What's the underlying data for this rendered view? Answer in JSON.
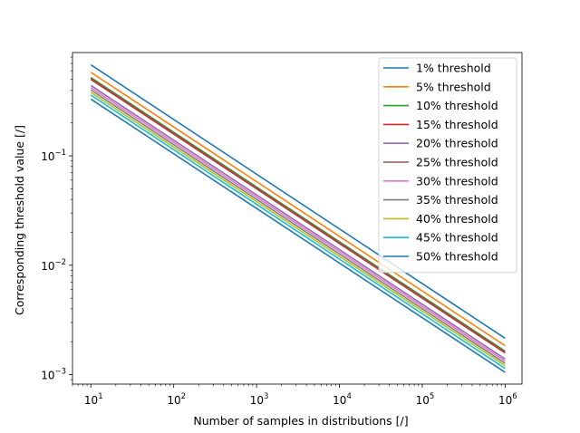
{
  "chart_data": {
    "type": "line",
    "xlabel": "Number of samples in distributions [/]",
    "ylabel": "Corresponding threshold value [/]",
    "xscale": "log",
    "yscale": "log",
    "xlim": [
      6,
      1600000.0
    ],
    "ylim": [
      0.00082,
      0.88
    ],
    "x_ticks": [
      {
        "base": "10",
        "exp": "1",
        "value": 10
      },
      {
        "base": "10",
        "exp": "2",
        "value": 100
      },
      {
        "base": "10",
        "exp": "3",
        "value": 1000
      },
      {
        "base": "10",
        "exp": "4",
        "value": 10000
      },
      {
        "base": "10",
        "exp": "5",
        "value": 100000
      },
      {
        "base": "10",
        "exp": "6",
        "value": 1000000
      }
    ],
    "y_ticks": [
      {
        "base": "10",
        "exp": "−3",
        "value": 0.001
      },
      {
        "base": "10",
        "exp": "−2",
        "value": 0.01
      },
      {
        "base": "10",
        "exp": "−1",
        "value": 0.1
      }
    ],
    "grid": false,
    "legend_position": "top-right",
    "x": [
      10,
      1000000
    ],
    "series": [
      {
        "name": "1% threshold",
        "color": "#1f77b4",
        "values": [
          0.68,
          0.00215
        ]
      },
      {
        "name": "5% threshold",
        "color": "#ff7f0e",
        "values": [
          0.58,
          0.00184
        ]
      },
      {
        "name": "10% threshold",
        "color": "#2ca02c",
        "values": [
          0.52,
          0.00164
        ]
      },
      {
        "name": "15% threshold",
        "color": "#d62728",
        "values": [
          0.5,
          0.00158
        ]
      },
      {
        "name": "20% threshold",
        "color": "#9467bd",
        "values": [
          0.44,
          0.00139
        ]
      },
      {
        "name": "25% threshold",
        "color": "#8c564b",
        "values": [
          0.51,
          0.00161
        ]
      },
      {
        "name": "30% threshold",
        "color": "#e377c2",
        "values": [
          0.42,
          0.00133
        ]
      },
      {
        "name": "35% threshold",
        "color": "#7f7f7f",
        "values": [
          0.4,
          0.00127
        ]
      },
      {
        "name": "40% threshold",
        "color": "#bcbd22",
        "values": [
          0.38,
          0.00121
        ]
      },
      {
        "name": "45% threshold",
        "color": "#17becf",
        "values": [
          0.36,
          0.00114
        ]
      },
      {
        "name": "50% threshold",
        "color": "#1f77b4",
        "values": [
          0.33,
          0.00105
        ]
      }
    ]
  }
}
